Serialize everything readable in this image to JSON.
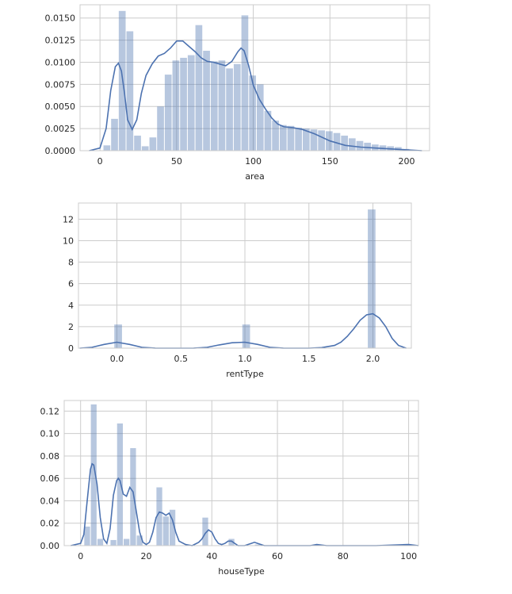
{
  "chart_data": [
    {
      "type": "histogram",
      "xlabel": "area",
      "ylabel": "",
      "xlim": [
        -13,
        215
      ],
      "ylim": [
        0,
        0.0165
      ],
      "grid": true,
      "xticks": [
        0,
        50,
        100,
        150,
        200
      ],
      "yticks": [
        0.0,
        0.0025,
        0.005,
        0.0075,
        0.01,
        0.0125,
        0.015
      ],
      "xtick_labels": [
        "0",
        "50",
        "100",
        "150",
        "200"
      ],
      "ytick_labels": [
        "0.0000",
        "0.0025",
        "0.0050",
        "0.0075",
        "0.0100",
        "0.0125",
        "0.0150"
      ],
      "bin_edges": [
        2,
        7,
        12,
        17,
        22,
        27,
        32,
        37,
        42,
        47,
        52,
        57,
        62,
        67,
        72,
        77,
        82,
        87,
        92,
        97,
        102,
        107,
        112,
        117,
        122,
        127,
        132,
        137,
        142,
        147,
        152,
        157,
        162,
        167,
        172,
        177,
        182,
        187,
        192,
        197,
        202
      ],
      "values": [
        0.0006,
        0.0036,
        0.0158,
        0.0135,
        0.0017,
        0.0005,
        0.0015,
        0.005,
        0.0086,
        0.0102,
        0.0105,
        0.0108,
        0.0142,
        0.0113,
        0.0101,
        0.0102,
        0.0093,
        0.0098,
        0.0153,
        0.0085,
        0.0075,
        0.0045,
        0.0034,
        0.0029,
        0.0028,
        0.0026,
        0.0025,
        0.0024,
        0.0023,
        0.0022,
        0.002,
        0.0017,
        0.0014,
        0.0011,
        0.0009,
        0.0007,
        0.0006,
        0.0005,
        0.0004,
        0.0002
      ],
      "kde": {
        "x": [
          -7,
          0,
          4,
          7,
          10,
          12,
          14,
          16,
          18,
          21,
          24,
          27,
          30,
          34,
          38,
          42,
          46,
          50,
          54,
          58,
          62,
          66,
          70,
          74,
          78,
          82,
          86,
          90,
          92,
          94,
          97,
          100,
          104,
          108,
          112,
          116,
          120,
          126,
          132,
          140,
          150,
          160,
          170,
          180,
          190,
          200,
          210
        ],
        "y": [
          0.0,
          0.0003,
          0.0025,
          0.0068,
          0.0095,
          0.0099,
          0.009,
          0.0065,
          0.0035,
          0.0024,
          0.0035,
          0.0065,
          0.0085,
          0.0098,
          0.0107,
          0.011,
          0.0116,
          0.0124,
          0.0124,
          0.0118,
          0.0112,
          0.0105,
          0.0101,
          0.01,
          0.0098,
          0.0096,
          0.0101,
          0.0112,
          0.0116,
          0.0113,
          0.0096,
          0.0074,
          0.0058,
          0.0047,
          0.0037,
          0.003,
          0.0027,
          0.0026,
          0.0024,
          0.0019,
          0.0011,
          0.0006,
          0.0004,
          0.0003,
          0.0002,
          0.0001,
          0.0
        ]
      }
    },
    {
      "type": "histogram",
      "xlabel": "rentType",
      "ylabel": "",
      "xlim": [
        -0.3,
        2.3
      ],
      "ylim": [
        0,
        13.5
      ],
      "grid": true,
      "xticks": [
        0.0,
        0.5,
        1.0,
        1.5,
        2.0
      ],
      "yticks": [
        0,
        2,
        4,
        6,
        8,
        10,
        12
      ],
      "xtick_labels": [
        "0.0",
        "0.5",
        "1.0",
        "1.5",
        "2.0"
      ],
      "ytick_labels": [
        "0",
        "2",
        "4",
        "6",
        "8",
        "10",
        "12"
      ],
      "bars": [
        {
          "x0": -0.02,
          "x1": 0.04,
          "value": 2.2
        },
        {
          "x0": 0.98,
          "x1": 1.04,
          "value": 2.2
        },
        {
          "x0": 1.96,
          "x1": 2.02,
          "value": 12.9
        }
      ],
      "kde": {
        "x": [
          -0.29,
          -0.2,
          -0.1,
          0.0,
          0.1,
          0.2,
          0.3,
          0.4,
          0.5,
          0.6,
          0.7,
          0.8,
          0.9,
          1.0,
          1.1,
          1.2,
          1.3,
          1.4,
          1.5,
          1.6,
          1.7,
          1.75,
          1.8,
          1.85,
          1.9,
          1.95,
          2.0,
          2.05,
          2.1,
          2.15,
          2.2,
          2.26
        ],
        "y": [
          0.0,
          0.07,
          0.35,
          0.55,
          0.35,
          0.07,
          0.01,
          0.0,
          0.0,
          0.01,
          0.07,
          0.3,
          0.5,
          0.55,
          0.35,
          0.07,
          0.01,
          0.0,
          0.0,
          0.05,
          0.25,
          0.55,
          1.1,
          1.8,
          2.6,
          3.1,
          3.2,
          2.8,
          2.0,
          0.9,
          0.25,
          0.0
        ]
      }
    },
    {
      "type": "histogram",
      "xlabel": "houseType",
      "ylabel": "",
      "xlim": [
        -5,
        103
      ],
      "ylim": [
        0,
        0.1295
      ],
      "grid": true,
      "xticks": [
        0,
        20,
        40,
        60,
        80,
        100
      ],
      "yticks": [
        0.0,
        0.02,
        0.04,
        0.06,
        0.08,
        0.1,
        0.12
      ],
      "xtick_labels": [
        "0",
        "20",
        "40",
        "60",
        "80",
        "100"
      ],
      "ytick_labels": [
        "0.00",
        "0.02",
        "0.04",
        "0.06",
        "0.08",
        "0.10",
        "0.12"
      ],
      "bin_edges": [
        1,
        3,
        5,
        7,
        9,
        11,
        13,
        15,
        17,
        19,
        21,
        23,
        25,
        27,
        29,
        31,
        33,
        35,
        37,
        39,
        41,
        43,
        45,
        47,
        49,
        51,
        53,
        55
      ],
      "values": [
        0.017,
        0.126,
        0.006,
        0.0,
        0.005,
        0.109,
        0.006,
        0.087,
        0.009,
        0.0,
        0.0,
        0.052,
        0.026,
        0.032,
        0.0,
        0.0,
        0.0,
        0.0,
        0.025,
        0.0,
        0.0,
        0.0,
        0.006,
        0.0,
        0.0,
        0.0,
        0.001,
        0.0
      ],
      "kde": {
        "x": [
          -3,
          0,
          1,
          2,
          3,
          3.5,
          4,
          5,
          6,
          7,
          8,
          9,
          10,
          11,
          11.5,
          12,
          13,
          14,
          15,
          16,
          17,
          18,
          19,
          20,
          21,
          22,
          23,
          24,
          25,
          26,
          27,
          28,
          29,
          30,
          32,
          34,
          36,
          37,
          38,
          39,
          40,
          41,
          42,
          43,
          44,
          45,
          46,
          47,
          48,
          50,
          52,
          53,
          54,
          56,
          60,
          70,
          72,
          75,
          80,
          90,
          100,
          103
        ],
        "y": [
          0.0,
          0.002,
          0.01,
          0.04,
          0.068,
          0.073,
          0.072,
          0.055,
          0.025,
          0.006,
          0.002,
          0.015,
          0.045,
          0.058,
          0.06,
          0.058,
          0.046,
          0.044,
          0.052,
          0.048,
          0.03,
          0.012,
          0.003,
          0.001,
          0.003,
          0.012,
          0.025,
          0.03,
          0.029,
          0.027,
          0.029,
          0.023,
          0.012,
          0.004,
          0.001,
          0.0,
          0.003,
          0.006,
          0.011,
          0.014,
          0.012,
          0.006,
          0.002,
          0.001,
          0.002,
          0.004,
          0.004,
          0.002,
          0.0,
          0.0,
          0.002,
          0.003,
          0.002,
          0.0,
          0.0,
          0.0,
          0.001,
          0.0,
          0.0,
          0.0,
          0.001,
          0.0
        ]
      }
    }
  ],
  "colors": {
    "bar": "#4c72b0",
    "line": "#4c72b0",
    "grid": "#cccccc",
    "spine": "#cccccc",
    "text": "#262626"
  }
}
